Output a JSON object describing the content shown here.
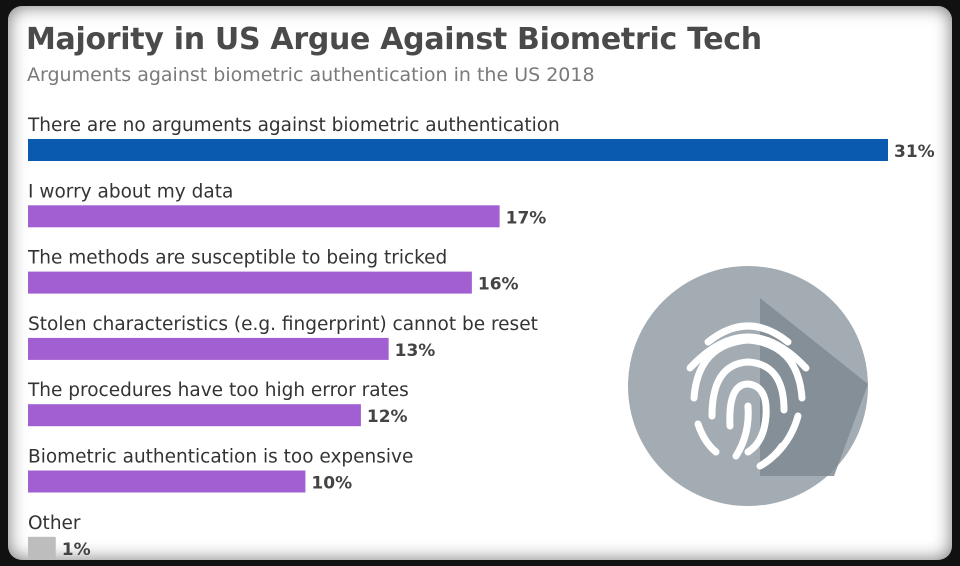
{
  "header": {
    "title": "Majority in US Argue Against Biometric Tech",
    "subtitle": "Arguments against biometric authentication in the US 2018"
  },
  "colors": {
    "highlight": "#0a5bb0",
    "bar": "#a25fd2",
    "other": "#bdbdbd",
    "icon_circle": "#a3acb3",
    "icon_shadow": "#7f8a93",
    "icon_print": "#ffffff"
  },
  "icon": {
    "name": "fingerprint-icon"
  },
  "chart_data": {
    "type": "bar",
    "orientation": "horizontal",
    "title": "Majority in US Argue Against Biometric Tech",
    "subtitle": "Arguments against biometric authentication in the US 2018",
    "unit": "%",
    "xlim": [
      0,
      31
    ],
    "grid": false,
    "legend": "none",
    "categories": [
      "There are no arguments against biometric authentication",
      "I worry about my data",
      "The methods are susceptible to being tricked",
      "Stolen characteristics (e.g. fingerprint) cannot be reset",
      "The procedures have too high error rates",
      "Biometric authentication is too expensive",
      "Other"
    ],
    "values": [
      31,
      17,
      16,
      13,
      12,
      10,
      1
    ],
    "value_labels": [
      "31%",
      "17%",
      "16%",
      "13%",
      "12%",
      "10%",
      "1%"
    ]
  }
}
